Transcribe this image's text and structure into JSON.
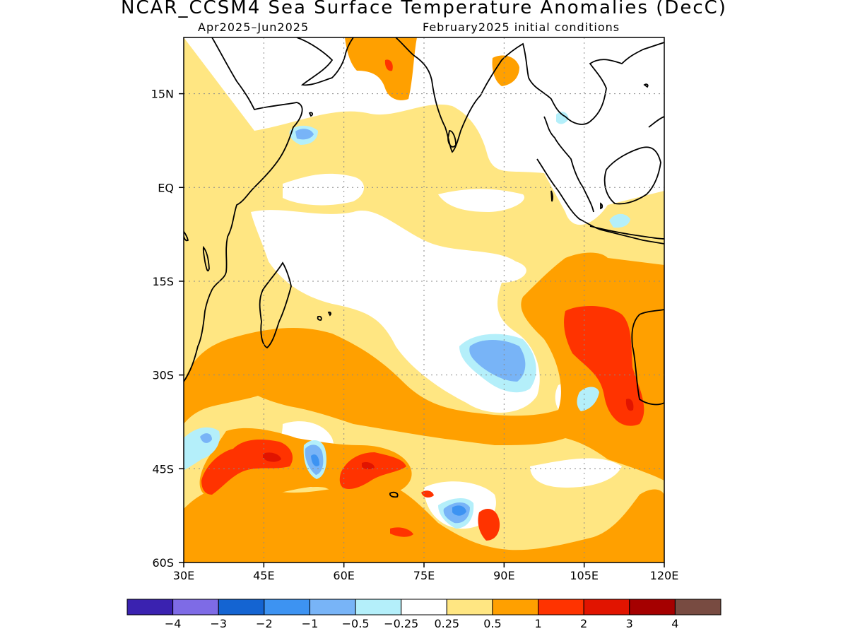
{
  "title": "NCAR_CCSM4 Sea Surface Temperature Anomalies (DecC)",
  "subtitle_left": "Apr2025–Jun2025",
  "subtitle_right": "February2025 initial conditions",
  "map": {
    "lon_range": [
      30,
      120
    ],
    "lat_range": [
      -60,
      24
    ],
    "lon_labels": [
      "30E",
      "45E",
      "60E",
      "75E",
      "90E",
      "105E",
      "120E"
    ],
    "lat_labels": [
      "15N",
      "EQ",
      "15S",
      "30S",
      "45S",
      "60S"
    ],
    "grid": "dotted",
    "coastlines": true
  },
  "colorbar": {
    "colors": [
      "#3a22b0",
      "#7e6be6",
      "#1464d2",
      "#3d93f2",
      "#78b4f7",
      "#b4effa",
      "#ffffff",
      "#ffe682",
      "#ffa000",
      "#ff3300",
      "#e11400",
      "#a50000",
      "#784b41"
    ],
    "labels": [
      "−4",
      "−3",
      "−2",
      "−1",
      "−0.5",
      "−0.25",
      "0.25",
      "0.5",
      "1",
      "2",
      "3",
      "4"
    ]
  },
  "colors": {
    "neg_strong": "#3d93f2",
    "neg_mid": "#78b4f7",
    "neg_weak": "#b4effa",
    "pos_weak": "#ffe682",
    "pos_mid": "#ffa000",
    "pos_strong": "#ff3300",
    "pos_stronger": "#e11400"
  }
}
